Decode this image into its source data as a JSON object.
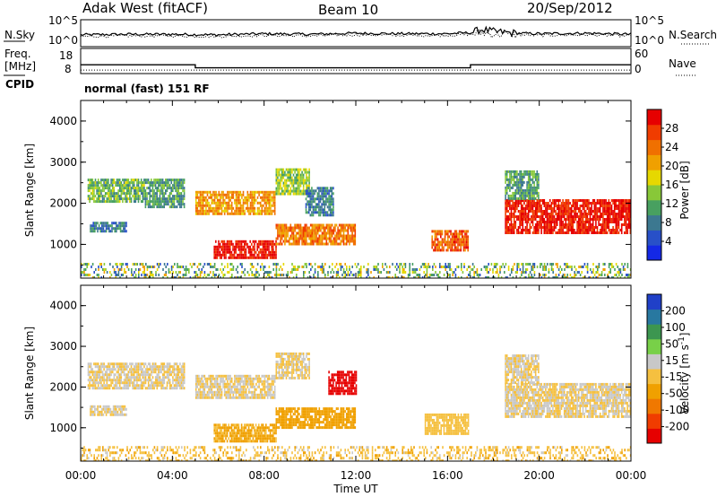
{
  "header": {
    "station": "Adak West (fitACF)",
    "beam": "Beam 10",
    "date": "20/Sep/2012"
  },
  "noise_panel": {
    "left_label": "N.Sky",
    "right_label": "N.Search",
    "left_top_tick": "10^5",
    "left_bottom_tick": "10^0",
    "right_top_tick": "10^5",
    "right_bottom_tick": "10^0"
  },
  "freq_panel": {
    "left_label_1": "Freq.",
    "left_label_2": "[MHz]",
    "cpid_label": "CPID",
    "right_label": "Nave",
    "left_ticks": [
      "18",
      "8"
    ],
    "right_ticks": [
      "60",
      "0"
    ],
    "mode_text": "normal (fast) 151 RF"
  },
  "colors": {
    "power": [
      "#1428e6",
      "#2850c8",
      "#3c7890",
      "#48a060",
      "#88c838",
      "#e6d800",
      "#f0a000",
      "#f07000",
      "#f03c00",
      "#e60000"
    ],
    "velocity": [
      "#e60000",
      "#f03c00",
      "#f07800",
      "#f0a000",
      "#f5c040",
      "#c8c8c8",
      "#78d048",
      "#3c9650",
      "#2878a0",
      "#2040c8"
    ]
  },
  "chart_data": [
    {
      "type": "line",
      "name": "noise",
      "title": "",
      "x_range": [
        "00:00",
        "24:00"
      ],
      "x": [
        0,
        2,
        4,
        6,
        8,
        10,
        12,
        14,
        16,
        17,
        17.5,
        18,
        19,
        20,
        22,
        24
      ],
      "series": [
        {
          "name": "N.Sky",
          "values": [
            2.2,
            2.3,
            2.3,
            2.2,
            2.4,
            2.3,
            2.5,
            2.4,
            2.4,
            2.6,
            3.2,
            2.8,
            2.5,
            2.4,
            2.5,
            2.3
          ]
        },
        {
          "name": "N.Search",
          "values": [
            1.9,
            2.0,
            2.0,
            1.9,
            2.1,
            2.0,
            2.2,
            2.1,
            2.1,
            2.3,
            2.6,
            2.3,
            2.2,
            2.1,
            2.2,
            2.0
          ]
        }
      ],
      "ylim": [
        0,
        5
      ],
      "ylabel": "N.Sky"
    },
    {
      "type": "line",
      "name": "frequency",
      "x": [
        0,
        5,
        5,
        17,
        17,
        24
      ],
      "series": [
        {
          "name": "Freq.",
          "values": [
            11.5,
            11.5,
            10.3,
            10.3,
            11.5,
            11.5
          ]
        },
        {
          "name": "Nave",
          "values": [
            16,
            16,
            16,
            16,
            16,
            16
          ]
        }
      ],
      "ylim": [
        8,
        18
      ],
      "ylabel": "Freq. [MHz]"
    },
    {
      "type": "heatmap",
      "name": "power",
      "xlabel": "",
      "ylabel": "Slant Range [km]",
      "x_ticks": [],
      "y_ticks": [
        "1000",
        "2000",
        "3000",
        "4000"
      ],
      "xlim": [
        0,
        24
      ],
      "ylim": [
        180,
        4500
      ],
      "colorbar_label": "Power [dB]",
      "colorbar_ticks": [
        "28",
        "24",
        "20",
        "16",
        "12",
        "8",
        "4"
      ],
      "colorbar_range": [
        0,
        30
      ],
      "regions": [
        {
          "t0": 0.3,
          "t1": 2.8,
          "r0": 2050,
          "r1": 2600,
          "value": 12
        },
        {
          "t0": 2.8,
          "t1": 4.5,
          "r0": 1900,
          "r1": 2600,
          "value": 10
        },
        {
          "t0": 0.4,
          "t1": 2.0,
          "r0": 1350,
          "r1": 1550,
          "value": 8
        },
        {
          "t0": 5.0,
          "t1": 8.5,
          "r0": 1750,
          "r1": 2300,
          "value": 20
        },
        {
          "t0": 8.5,
          "t1": 10.0,
          "r0": 2200,
          "r1": 2850,
          "value": 14
        },
        {
          "t0": 5.8,
          "t1": 8.5,
          "r0": 700,
          "r1": 1100,
          "value": 28
        },
        {
          "t0": 8.5,
          "t1": 12.0,
          "r0": 1000,
          "r1": 1500,
          "value": 22
        },
        {
          "t0": 9.8,
          "t1": 11.0,
          "r0": 1700,
          "r1": 2400,
          "value": 8
        },
        {
          "t0": 15.3,
          "t1": 16.9,
          "r0": 850,
          "r1": 1350,
          "value": 24
        },
        {
          "t0": 18.5,
          "t1": 24.0,
          "r0": 1300,
          "r1": 2100,
          "value": 28
        },
        {
          "t0": 18.5,
          "t1": 20.0,
          "r0": 2100,
          "r1": 2800,
          "value": 10
        },
        {
          "t0": 0.0,
          "t1": 24.0,
          "r0": 180,
          "r1": 550,
          "value": 12
        }
      ]
    },
    {
      "type": "heatmap",
      "name": "velocity",
      "xlabel": "Time UT",
      "ylabel": "Slant Range [km]",
      "x_ticks": [
        "00:00",
        "04:00",
        "08:00",
        "12:00",
        "16:00",
        "20:00",
        "00:00"
      ],
      "y_ticks": [
        "1000",
        "2000",
        "3000",
        "4000"
      ],
      "xlim": [
        0,
        24
      ],
      "ylim": [
        180,
        4500
      ],
      "colorbar_label": "Velocity [m s^-1]",
      "colorbar_ticks": [
        "200",
        "100",
        "50",
        "15",
        "-15",
        "-50",
        "-100",
        "-200"
      ],
      "colorbar_range": [
        -250,
        250
      ],
      "regions": [
        {
          "t0": 0.3,
          "t1": 4.5,
          "r0": 1950,
          "r1": 2600,
          "value": 0
        },
        {
          "t0": 0.4,
          "t1": 2.0,
          "r0": 1350,
          "r1": 1550,
          "value": 0
        },
        {
          "t0": 5.0,
          "t1": 8.5,
          "r0": 1750,
          "r1": 2300,
          "value": 0
        },
        {
          "t0": 8.5,
          "t1": 10.0,
          "r0": 2200,
          "r1": 2850,
          "value": 0
        },
        {
          "t0": 5.8,
          "t1": 8.5,
          "r0": 700,
          "r1": 1100,
          "value": -60
        },
        {
          "t0": 8.5,
          "t1": 12.0,
          "r0": 1000,
          "r1": 1500,
          "value": -70
        },
        {
          "t0": 10.8,
          "t1": 12.0,
          "r0": 1850,
          "r1": 2400,
          "value": -220
        },
        {
          "t0": 15.0,
          "t1": 16.9,
          "r0": 850,
          "r1": 1350,
          "value": -30
        },
        {
          "t0": 18.5,
          "t1": 24.0,
          "r0": 1300,
          "r1": 2100,
          "value": 0
        },
        {
          "t0": 18.5,
          "t1": 20.0,
          "r0": 2100,
          "r1": 2800,
          "value": 0
        },
        {
          "t0": 0.0,
          "t1": 24.0,
          "r0": 180,
          "r1": 550,
          "value": -30
        }
      ]
    }
  ]
}
